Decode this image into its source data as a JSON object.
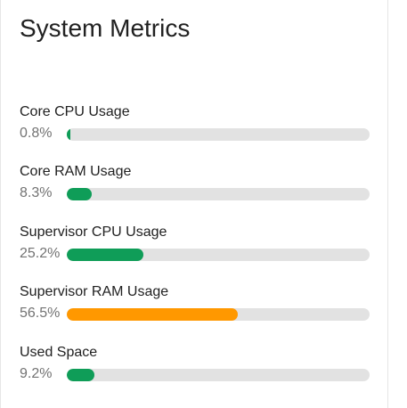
{
  "card": {
    "title": "System Metrics"
  },
  "metrics": [
    {
      "label": "Core CPU Usage",
      "value_text": "0.8%",
      "percent": 0.8,
      "color": "#0f9d58"
    },
    {
      "label": "Core RAM Usage",
      "value_text": "8.3%",
      "percent": 8.3,
      "color": "#0f9d58"
    },
    {
      "label": "Supervisor CPU Usage",
      "value_text": "25.2%",
      "percent": 25.2,
      "color": "#0f9d58"
    },
    {
      "label": "Supervisor RAM Usage",
      "value_text": "56.5%",
      "percent": 56.5,
      "color": "#ff9800"
    },
    {
      "label": "Used Space",
      "value_text": "9.2%",
      "percent": 9.2,
      "color": "#0f9d58"
    }
  ]
}
